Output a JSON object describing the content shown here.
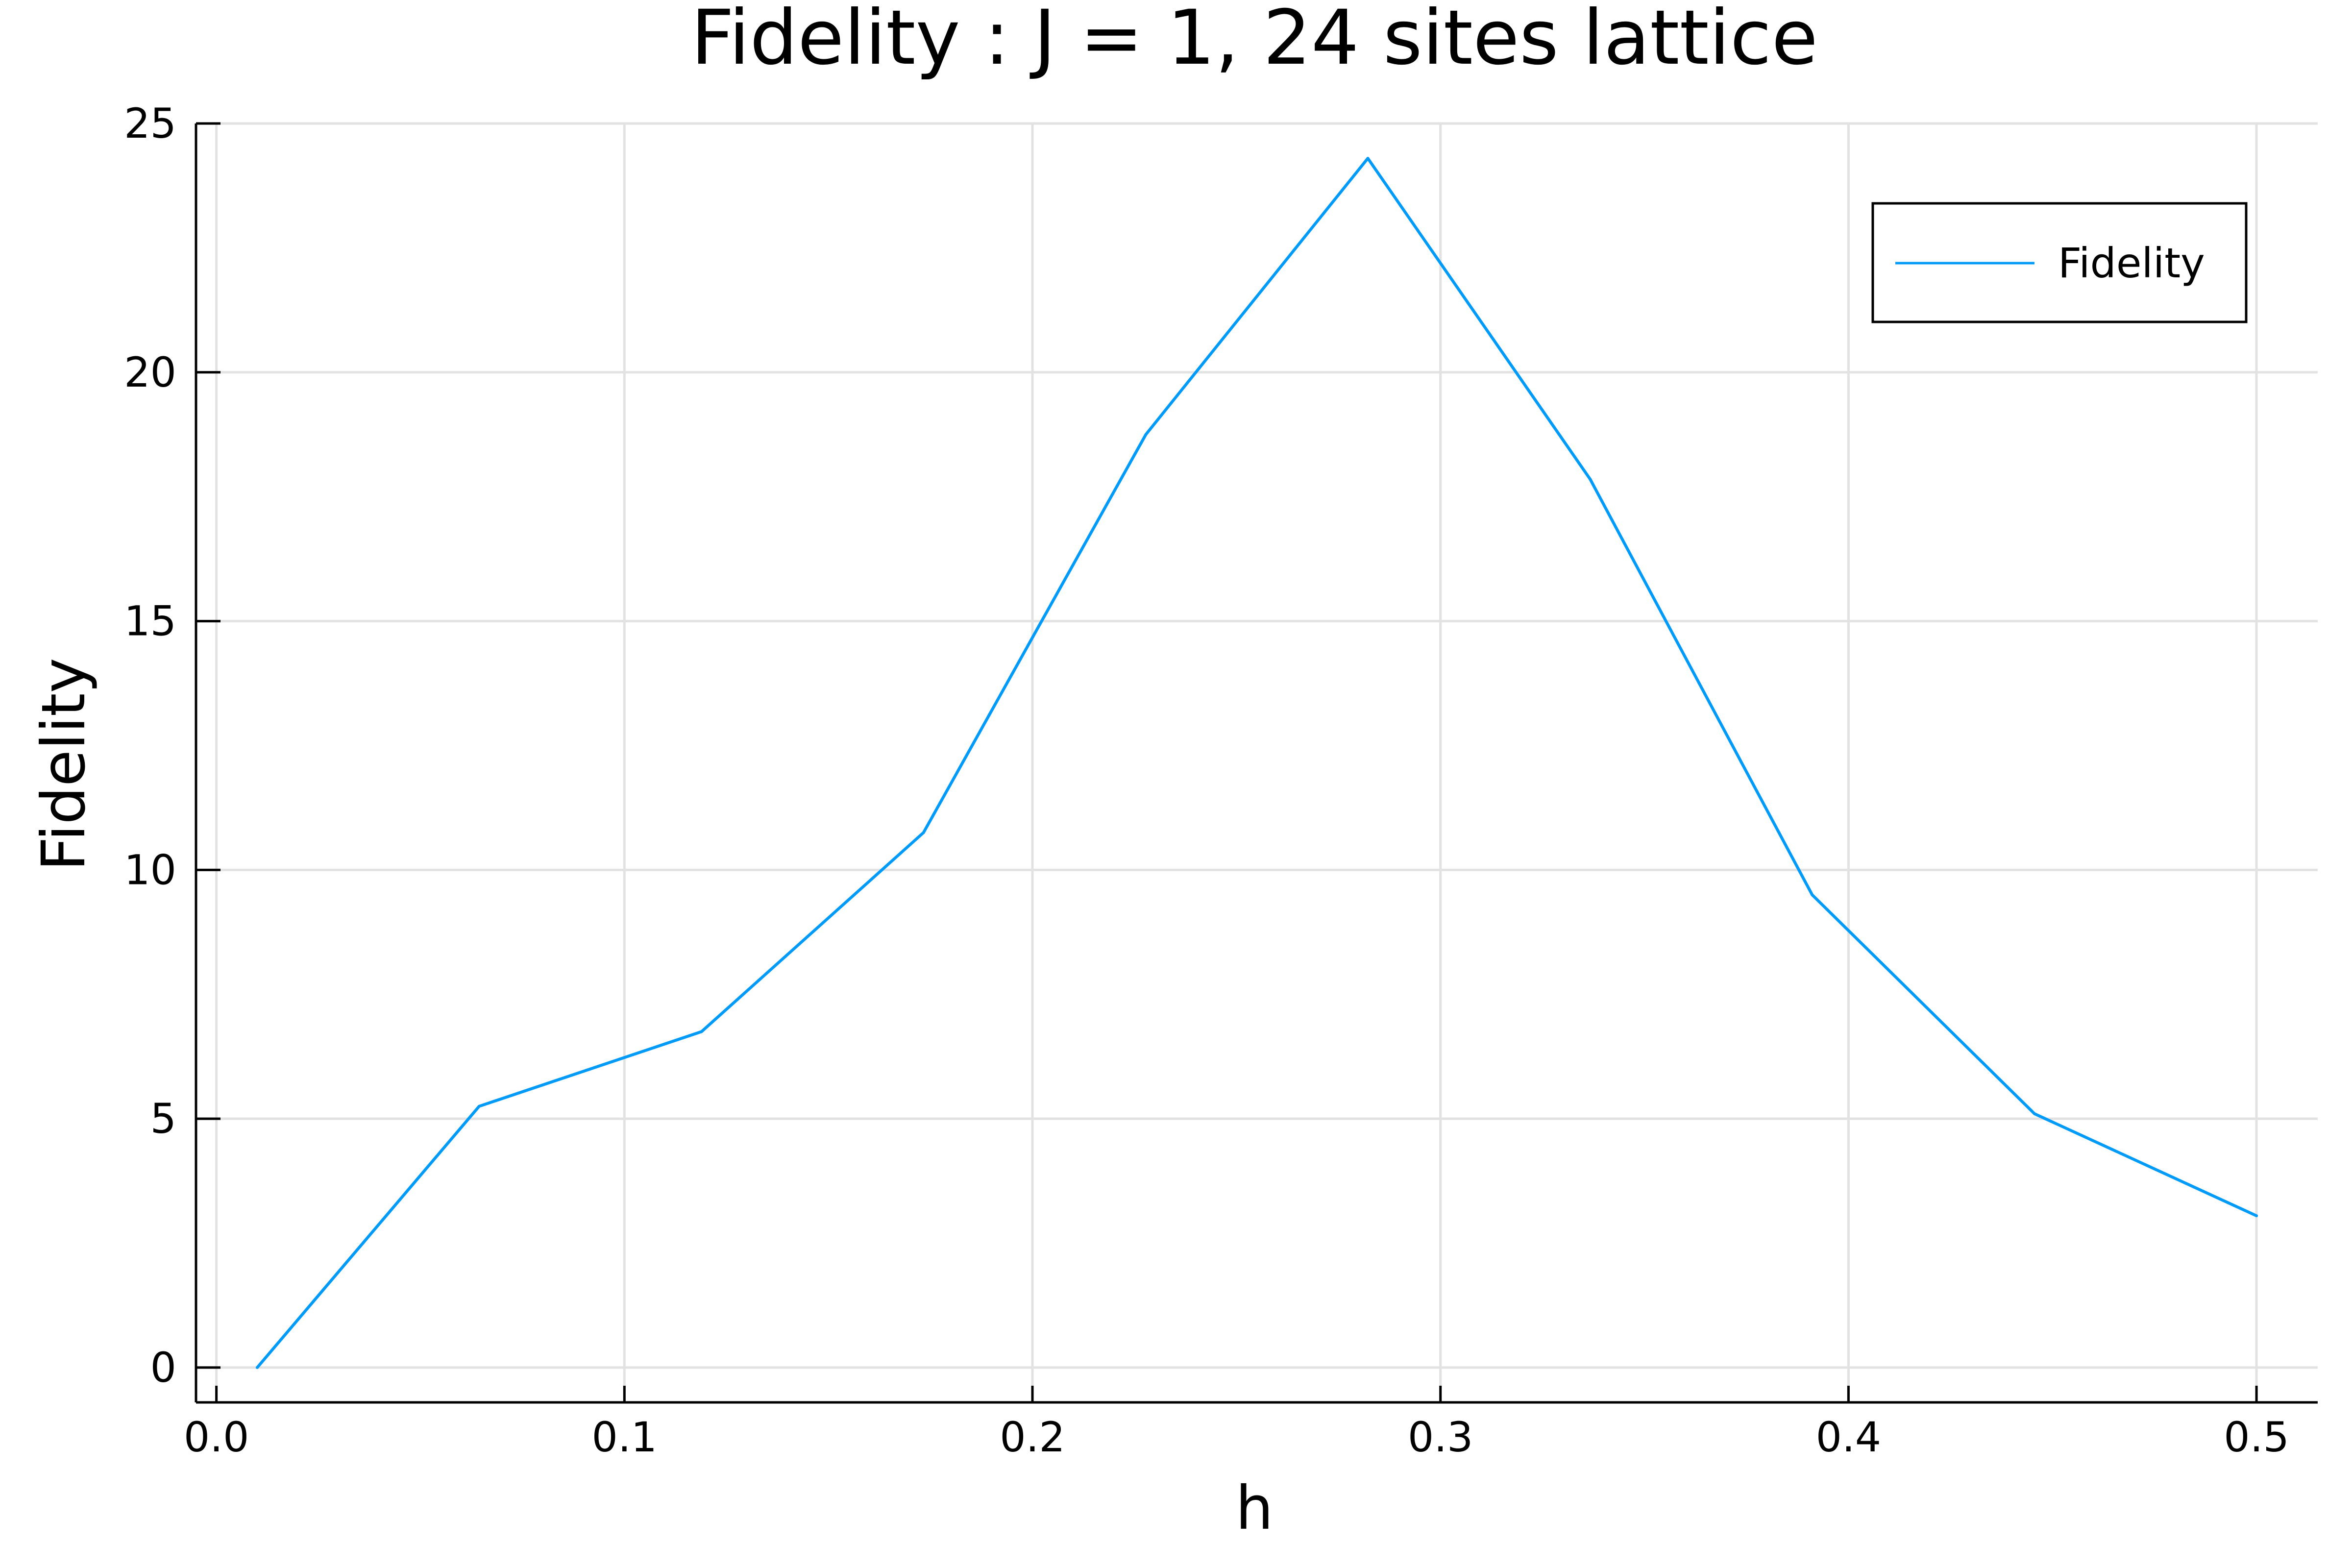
{
  "chart_data": {
    "type": "line",
    "title": "Fidelity : J = 1, 24 sites lattice",
    "xlabel": "h",
    "ylabel": "Fidelity",
    "xlim": [
      -0.005,
      0.515
    ],
    "ylim": [
      -0.7,
      25
    ],
    "xticks": [
      0.0,
      0.1,
      0.2,
      0.3,
      0.4,
      0.5
    ],
    "xtick_labels": [
      "0.0",
      "0.1",
      "0.2",
      "0.3",
      "0.4",
      "0.5"
    ],
    "yticks": [
      0,
      5,
      10,
      15,
      20,
      25
    ],
    "ytick_labels": [
      "0",
      "5",
      "10",
      "15",
      "20",
      "25"
    ],
    "grid": true,
    "legend_position": "top-right",
    "series": [
      {
        "name": "Fidelity",
        "color": "#009af9",
        "x": [
          0.01,
          0.0644,
          0.1189,
          0.1733,
          0.2278,
          0.2822,
          0.3367,
          0.3911,
          0.4456,
          0.5
        ],
        "y": [
          0.0,
          5.25,
          6.75,
          10.75,
          18.75,
          24.3,
          17.85,
          9.5,
          5.1,
          3.05
        ]
      }
    ]
  }
}
